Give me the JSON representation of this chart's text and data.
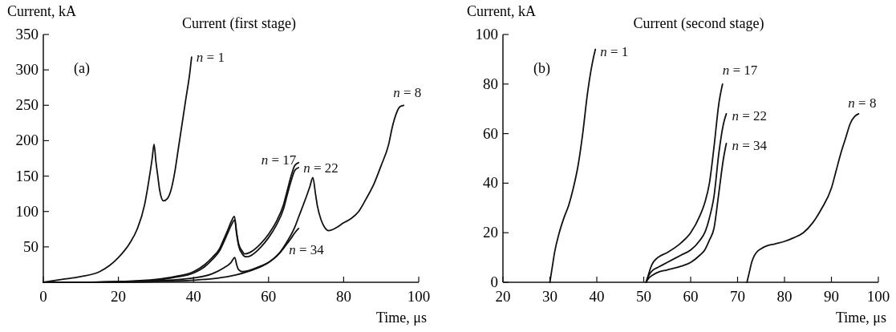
{
  "chart_data": [
    {
      "type": "line",
      "title": "Current (first stage)",
      "xlabel": "Time, μs",
      "ylabel": "Current, kA",
      "annotations": [
        "(a)"
      ],
      "xlim": [
        0,
        100
      ],
      "ylim": [
        0,
        350
      ],
      "xticks": [
        0,
        20,
        40,
        60,
        80,
        100
      ],
      "yticks": [
        50,
        100,
        150,
        200,
        250,
        300,
        350
      ],
      "marker": "none",
      "line_style": "solid",
      "series": [
        {
          "name": "n = 1",
          "color": "#111111",
          "x": [
            0,
            5,
            10,
            15,
            20,
            23,
            25,
            27,
            28,
            29,
            29.5,
            30,
            30.5,
            31,
            32,
            33,
            34,
            35,
            36,
            37,
            38,
            39,
            39.5
          ],
          "values": [
            0,
            4,
            8,
            15,
            35,
            55,
            75,
            110,
            140,
            175,
            195,
            170,
            150,
            130,
            115,
            118,
            130,
            155,
            190,
            225,
            260,
            295,
            318
          ]
        },
        {
          "name": "n = 17",
          "color": "#111111",
          "x": [
            0,
            10,
            20,
            30,
            35,
            40,
            43,
            45,
            47,
            48,
            49,
            50,
            50.9,
            51.5,
            52,
            53,
            53.6,
            55,
            58,
            60,
            62,
            64,
            65,
            66,
            67,
            68
          ],
          "values": [
            0,
            0,
            1,
            4,
            8,
            15,
            25,
            35,
            48,
            60,
            72,
            85,
            93,
            70,
            55,
            44,
            40,
            42,
            55,
            68,
            85,
            110,
            130,
            150,
            165,
            169
          ]
        },
        {
          "name": "n = 22",
          "color": "#111111",
          "x": [
            0,
            10,
            20,
            30,
            35,
            40,
            43,
            45,
            47,
            48,
            49,
            50,
            51,
            51.5,
            52,
            53,
            54,
            55,
            58,
            60,
            62,
            64,
            65,
            66,
            67,
            68
          ],
          "values": [
            0,
            0,
            1,
            3,
            7,
            13,
            22,
            32,
            45,
            56,
            68,
            80,
            88,
            68,
            52,
            40,
            36,
            37,
            50,
            63,
            80,
            104,
            124,
            143,
            158,
            162
          ]
        },
        {
          "name": "n = 34",
          "color": "#111111",
          "x": [
            0,
            10,
            20,
            30,
            40,
            45,
            48,
            50,
            51,
            51.5,
            52,
            53,
            55,
            58,
            60,
            62,
            64,
            65,
            66,
            67,
            68
          ],
          "values": [
            0,
            0,
            1,
            2,
            6,
            12,
            20,
            28,
            35,
            25,
            18,
            15,
            17,
            23,
            28,
            36,
            48,
            55,
            62,
            70,
            76
          ]
        },
        {
          "name": "n = 8",
          "color": "#111111",
          "x": [
            0,
            10,
            20,
            30,
            40,
            45,
            50,
            55,
            60,
            63,
            65,
            67,
            68,
            70,
            71,
            71.8,
            72.5,
            73,
            74,
            75,
            76,
            78,
            80,
            82,
            84,
            86,
            88,
            90,
            92,
            93,
            94,
            95,
            96
          ],
          "values": [
            0,
            0,
            0,
            1,
            3,
            5,
            9,
            16,
            28,
            42,
            58,
            78,
            92,
            120,
            135,
            148,
            125,
            108,
            88,
            77,
            73,
            77,
            84,
            90,
            100,
            118,
            138,
            165,
            195,
            220,
            238,
            248,
            250
          ]
        }
      ]
    },
    {
      "type": "line",
      "title": "Current (second stage)",
      "xlabel": "Time, μs",
      "ylabel": "Current, kA",
      "annotations": [
        "(b)"
      ],
      "xlim": [
        20,
        100
      ],
      "ylim": [
        0,
        100
      ],
      "xticks": [
        20,
        30,
        40,
        50,
        60,
        70,
        80,
        90,
        100
      ],
      "yticks": [
        0,
        20,
        40,
        60,
        80,
        100
      ],
      "marker": "none",
      "line_style": "solid",
      "series": [
        {
          "name": "n = 1",
          "color": "#111111",
          "x": [
            30,
            30.5,
            31,
            32,
            33,
            34,
            35,
            36,
            37,
            38,
            39,
            39.7
          ],
          "values": [
            0,
            6,
            12,
            20,
            26,
            31,
            38,
            47,
            60,
            76,
            88,
            94
          ]
        },
        {
          "name": "n = 17",
          "color": "#111111",
          "x": [
            50.5,
            51,
            51.5,
            52,
            53,
            55,
            58,
            60,
            62,
            63,
            64,
            65,
            66,
            66.8
          ],
          "values": [
            0,
            3,
            6,
            8,
            10,
            12,
            16,
            20,
            27,
            32,
            40,
            55,
            72,
            80
          ]
        },
        {
          "name": "n = 22",
          "color": "#111111",
          "x": [
            50.5,
            51,
            52,
            53,
            55,
            58,
            60,
            62,
            63,
            64,
            65,
            66,
            67,
            67.6
          ],
          "values": [
            0,
            2.5,
            5,
            6,
            8,
            11,
            13,
            17,
            20,
            26,
            35,
            52,
            64,
            68
          ]
        },
        {
          "name": "n = 34",
          "color": "#111111",
          "x": [
            50.5,
            51,
            52,
            53,
            55,
            58,
            60,
            62,
            63,
            64,
            65,
            66,
            67,
            67.6
          ],
          "values": [
            0,
            1.5,
            3,
            4,
            5,
            6.5,
            8,
            11,
            13,
            17,
            22,
            36,
            50,
            56
          ]
        },
        {
          "name": "n = 8",
          "color": "#111111",
          "x": [
            72,
            72.5,
            73,
            73.5,
            74,
            75,
            76,
            78,
            80,
            82,
            84,
            86,
            88,
            90,
            91,
            92,
            93,
            94,
            95,
            95.8
          ],
          "values": [
            0,
            4,
            8,
            10.5,
            12,
            13.5,
            14.5,
            15.5,
            16.5,
            18,
            20,
            24,
            30,
            38,
            45,
            52,
            58,
            64,
            67,
            68
          ]
        }
      ]
    }
  ]
}
